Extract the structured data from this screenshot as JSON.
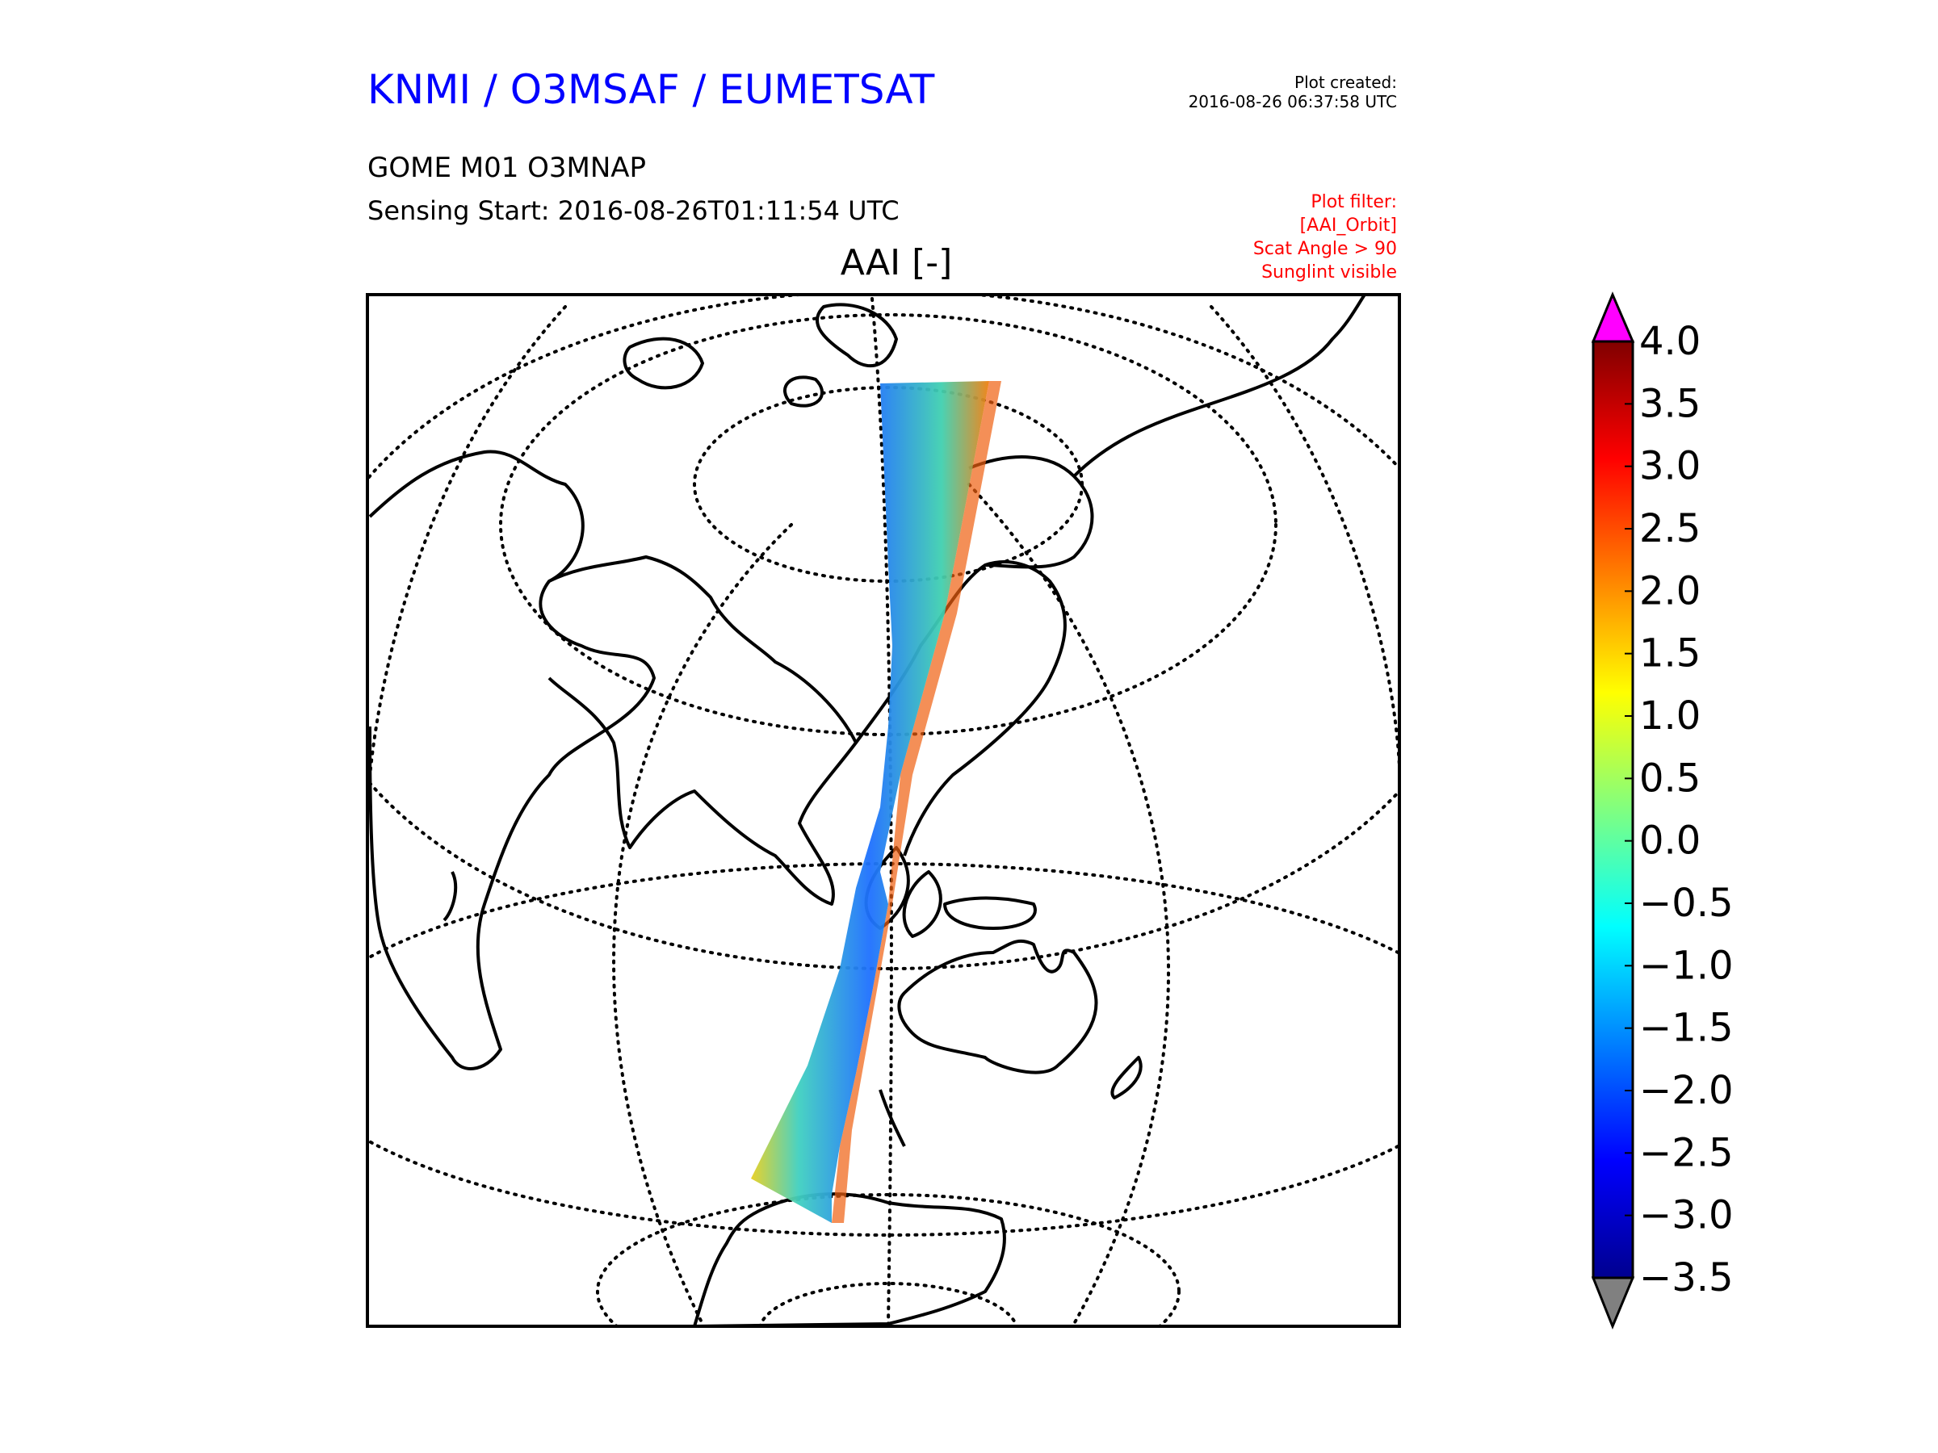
{
  "header": {
    "title": "KNMI / O3MSAF / EUMETSAT",
    "created_label": "Plot created:",
    "created_time": "2016-08-26 06:37:58 UTC"
  },
  "product": {
    "name": "GOME M01 O3MNAP",
    "sensing_start": "Sensing Start: 2016-08-26T01:11:54 UTC"
  },
  "filter": {
    "lines": [
      "Plot filter:",
      "[AAI_Orbit]",
      "Scat Angle > 90",
      "Sunglint visible"
    ]
  },
  "map": {
    "field_title": "AAI [-]",
    "projection": "orthographic-style globe with dotted graticule",
    "swath_description": "satellite orbit swath from polar region to Antarctica"
  },
  "colorbar": {
    "ticks": [
      "4.0",
      "3.5",
      "3.0",
      "2.5",
      "2.0",
      "1.5",
      "1.0",
      "0.5",
      "0.0",
      "−0.5",
      "−1.0",
      "−1.5",
      "−2.0",
      "−2.5",
      "−3.0",
      "−3.5"
    ],
    "range": [
      -3.5,
      4.0
    ],
    "over_color": "#ff00ff",
    "under_color": "#808080",
    "colormap": "jet"
  },
  "colors": {
    "title_color": "#0000ff",
    "filter_color": "#ff0000"
  }
}
